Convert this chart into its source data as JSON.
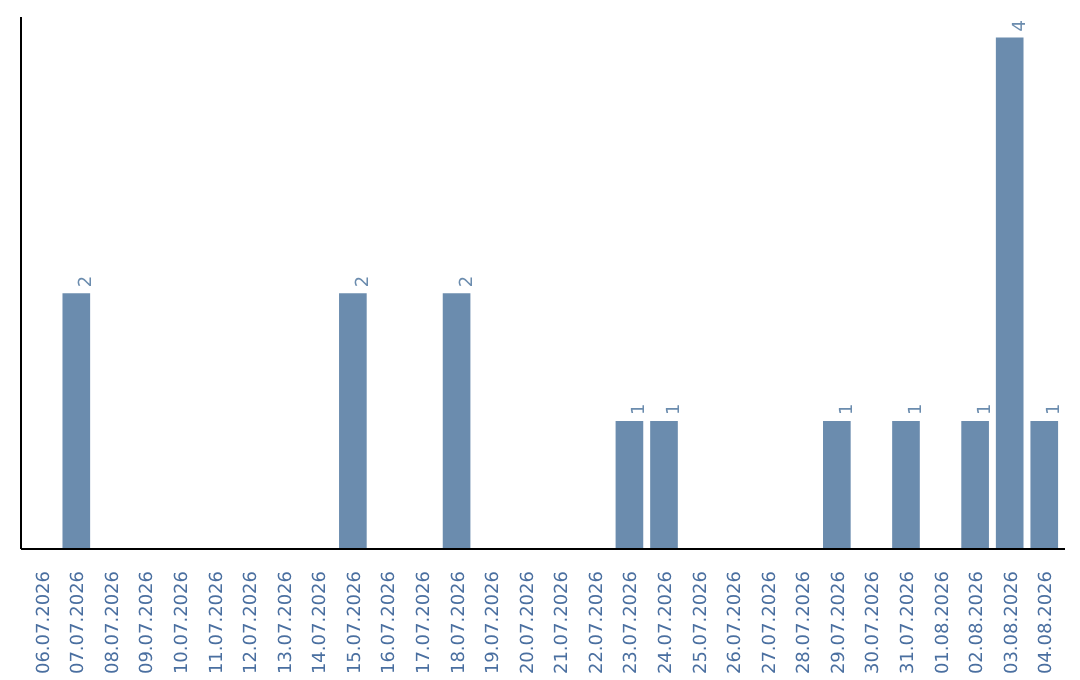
{
  "chart_data": {
    "type": "bar",
    "categories": [
      "06.07.2026",
      "07.07.2026",
      "08.07.2026",
      "09.07.2026",
      "10.07.2026",
      "11.07.2026",
      "12.07.2026",
      "13.07.2026",
      "14.07.2026",
      "15.07.2026",
      "16.07.2026",
      "17.07.2026",
      "18.07.2026",
      "19.07.2026",
      "20.07.2026",
      "21.07.2026",
      "22.07.2026",
      "23.07.2026",
      "24.07.2026",
      "25.07.2026",
      "26.07.2026",
      "27.07.2026",
      "28.07.2026",
      "29.07.2026",
      "30.07.2026",
      "31.07.2026",
      "01.08.2026",
      "02.08.2026",
      "03.08.2026",
      "04.08.2026"
    ],
    "values": [
      0,
      2,
      0,
      0,
      0,
      0,
      0,
      0,
      0,
      2,
      0,
      0,
      2,
      0,
      0,
      0,
      0,
      1,
      1,
      0,
      0,
      0,
      0,
      1,
      0,
      1,
      0,
      1,
      4,
      1
    ],
    "value_labels": [
      null,
      "2",
      null,
      null,
      null,
      null,
      null,
      null,
      null,
      "2",
      null,
      null,
      "2",
      null,
      null,
      null,
      null,
      "1",
      "1",
      null,
      null,
      null,
      null,
      "1",
      null,
      "1",
      null,
      "1",
      "4",
      "1"
    ],
    "color": "#6b8cae",
    "grid": false
  }
}
